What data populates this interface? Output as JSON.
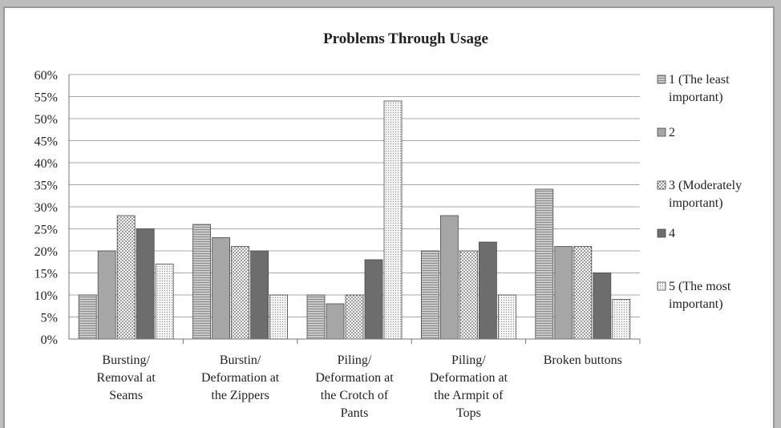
{
  "chart_data": {
    "type": "bar",
    "title": "Problems Through Usage",
    "ylim": [
      0,
      60
    ],
    "y_ticks": [
      "0%",
      "5%",
      "10%",
      "15%",
      "20%",
      "25%",
      "30%",
      "35%",
      "40%",
      "45%",
      "50%",
      "55%",
      "60%"
    ],
    "categories": [
      [
        "Bursting/",
        "Removal at",
        "Seams"
      ],
      [
        "Burstin/",
        "Deformation at",
        "the Zippers"
      ],
      [
        "Piling/",
        "Deformation at",
        "the Crotch of",
        "Pants"
      ],
      [
        "Piling/",
        "Deformation at",
        "the Armpit of",
        "Tops"
      ],
      [
        "Broken buttons"
      ]
    ],
    "series": [
      {
        "name": "1 (The least important)",
        "legend_lines": [
          "1 (The least",
          "important)"
        ],
        "values": [
          10,
          26,
          10,
          20,
          34
        ],
        "color": "#b9b9b9",
        "pattern": "hstripe"
      },
      {
        "name": "2",
        "legend_lines": [
          "2"
        ],
        "values": [
          20,
          23,
          8,
          28,
          21
        ],
        "color": "#a6a6a6",
        "pattern": "solid"
      },
      {
        "name": "3 (Moderately important)",
        "legend_lines": [
          "3 (Moderately",
          "important)"
        ],
        "values": [
          28,
          21,
          10,
          20,
          21
        ],
        "color": "#ffffff",
        "pattern": "dots-dark"
      },
      {
        "name": "4",
        "legend_lines": [
          "4"
        ],
        "values": [
          25,
          20,
          18,
          22,
          15
        ],
        "color": "#6d6d6d",
        "pattern": "solid"
      },
      {
        "name": "5 (The most important)",
        "legend_lines": [
          "5 (The most",
          "important)"
        ],
        "values": [
          17,
          10,
          54,
          10,
          9
        ],
        "color": "#e8e8e8",
        "pattern": "dots-fine"
      }
    ],
    "grid": true,
    "legend_position": "right"
  }
}
